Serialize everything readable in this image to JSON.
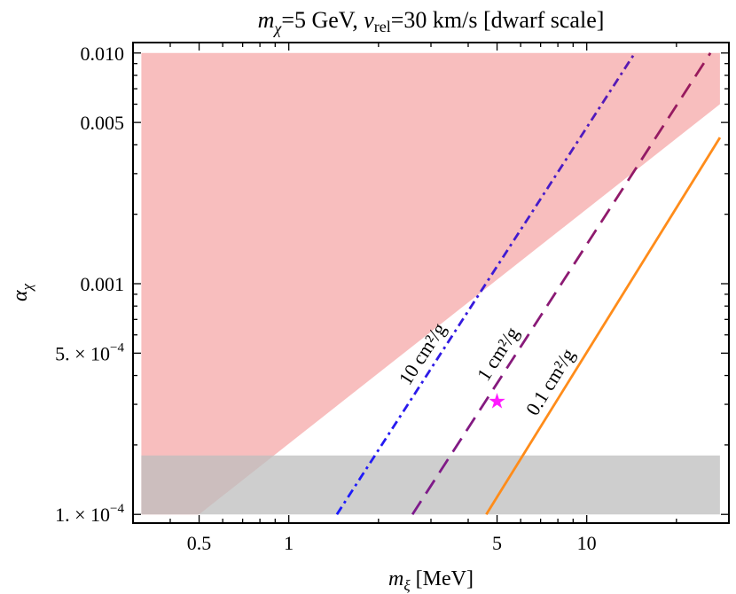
{
  "chart_data": {
    "type": "line",
    "title": {
      "prefix_var": "m",
      "prefix_sub": "χ",
      "part1": "=5 GeV, ",
      "var2": "v",
      "var2_sub": "rel",
      "part2": "=30 km/s [dwarf scale]"
    },
    "xlabel": {
      "var": "m",
      "sub": "ξ",
      "unit": " [MeV]"
    },
    "ylabel": {
      "var": "α",
      "sub": "χ"
    },
    "x_scale": "log",
    "y_scale": "log",
    "xlim": [
      0.3,
      30
    ],
    "ylim": [
      9.17e-05,
      0.0111
    ],
    "x_ticks": [
      {
        "value": 0.5,
        "label": "0.5"
      },
      {
        "value": 1,
        "label": "1"
      },
      {
        "value": 5,
        "label": "5"
      },
      {
        "value": 10,
        "label": "10"
      }
    ],
    "y_ticks": [
      {
        "value": 0.0001,
        "mant": "1.",
        "exp": "−4"
      },
      {
        "value": 0.0005,
        "mant": "5.",
        "exp": "−4"
      },
      {
        "value": 0.001,
        "label": "0.001"
      },
      {
        "value": 0.005,
        "label": "0.005"
      },
      {
        "value": 0.01,
        "label": "0.010"
      }
    ],
    "regions": [
      {
        "id": "red-excluded-region",
        "color": "#f5a8a8",
        "points": [
          [
            0.32,
            0.0001
          ],
          [
            0.5,
            0.0001
          ],
          [
            28,
            0.006
          ],
          [
            28,
            0.01
          ],
          [
            0.32,
            0.01
          ]
        ]
      },
      {
        "id": "gray-excluded-region",
        "color": "#bdbdbd",
        "points": [
          [
            0.32,
            0.0001
          ],
          [
            28,
            0.0001
          ],
          [
            28,
            0.00018
          ],
          [
            0.32,
            0.00018
          ]
        ]
      }
    ],
    "series": [
      {
        "label": "10 cm²/g",
        "color": "#1a1aff",
        "color_end": "#5a1ab0",
        "dash": "10 5 3 5",
        "x": [
          1.45,
          14.5
        ],
        "y": [
          0.0001,
          0.01
        ]
      },
      {
        "label": "1 cm²/g",
        "color": "#7d1a8c",
        "color_end": "#9a1a5a",
        "dash": "18 10",
        "x": [
          2.6,
          26
        ],
        "y": [
          0.0001,
          0.01
        ]
      },
      {
        "label": "0.1 cm²/g",
        "color": "#ff8c1a",
        "color_end": "#ff8c1a",
        "dash": "",
        "x": [
          4.6,
          28
        ],
        "y": [
          0.0001,
          0.0043
        ]
      }
    ],
    "benchmark": {
      "symbol": "★",
      "color": "#ff1aff",
      "x": 5,
      "y": 0.00031
    },
    "grid": false,
    "legend": "none"
  }
}
